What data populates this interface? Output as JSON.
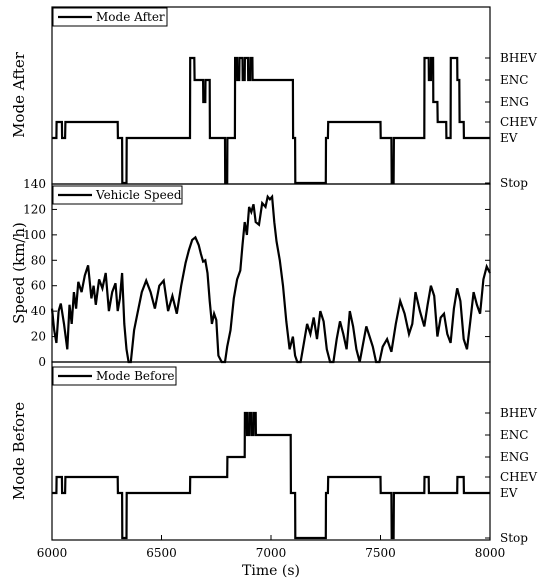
{
  "chart_data": [
    {
      "type": "line",
      "panel": "mode_after",
      "series": [
        {
          "name": "Mode After",
          "x": [
            6000,
            6020,
            6021,
            6045,
            6046,
            6060,
            6061,
            6300,
            6301,
            6320,
            6321,
            6340,
            6341,
            6630,
            6631,
            6650,
            6651,
            6690,
            6691,
            6700,
            6701,
            6720,
            6721,
            6790,
            6791,
            6800,
            6801,
            6835,
            6836,
            6845,
            6846,
            6855,
            6856,
            6870,
            6871,
            6880,
            6881,
            6895,
            6896,
            6905,
            6906,
            6915,
            6916,
            6930,
            6931,
            7100,
            7101,
            7110,
            7111,
            7250,
            7251,
            7260,
            7261,
            7500,
            7501,
            7550,
            7551,
            7560,
            7561,
            7700,
            7701,
            7720,
            7721,
            7730,
            7731,
            7740,
            7741,
            7760,
            7761,
            7800,
            7801,
            7820,
            7821,
            7850,
            7851,
            7860,
            7861,
            7880,
            7881,
            8000
          ],
          "y": [
            "EV",
            "EV",
            "CHEV",
            "CHEV",
            "EV",
            "EV",
            "CHEV",
            "CHEV",
            "EV",
            "EV",
            "Stop",
            "Stop",
            "EV",
            "EV",
            "BHEV",
            "BHEV",
            "ENC",
            "ENC",
            "ENG",
            "ENG",
            "ENC",
            "ENC",
            "EV",
            "EV",
            "Stop",
            "Stop",
            "EV",
            "EV",
            "BHEV",
            "BHEV",
            "ENC",
            "ENC",
            "BHEV",
            "BHEV",
            "ENC",
            "ENC",
            "BHEV",
            "BHEV",
            "ENC",
            "ENC",
            "BHEV",
            "BHEV",
            "ENC",
            "ENC",
            "ENC",
            "ENC",
            "EV",
            "EV",
            "Stop",
            "Stop",
            "EV",
            "EV",
            "CHEV",
            "CHEV",
            "EV",
            "EV",
            "Stop",
            "Stop",
            "EV",
            "EV",
            "BHEV",
            "BHEV",
            "ENC",
            "ENC",
            "BHEV",
            "BHEV",
            "ENG",
            "ENG",
            "CHEV",
            "CHEV",
            "EV",
            "EV",
            "BHEV",
            "BHEV",
            "ENC",
            "ENC",
            "CHEV",
            "CHEV",
            "EV",
            "EV"
          ]
        }
      ],
      "y_categories": [
        "Stop",
        "EV",
        "CHEV",
        "ENG",
        "ENC",
        "BHEV"
      ],
      "ylabel": "Mode After",
      "xlim": [
        6000,
        8000
      ]
    },
    {
      "type": "line",
      "panel": "speed",
      "series": [
        {
          "name": "Vehicle Speed",
          "x": [
            6000,
            6010,
            6020,
            6030,
            6040,
            6055,
            6070,
            6080,
            6090,
            6100,
            6110,
            6120,
            6135,
            6150,
            6165,
            6180,
            6190,
            6200,
            6215,
            6230,
            6245,
            6260,
            6275,
            6290,
            6300,
            6310,
            6320,
            6330,
            6340,
            6350,
            6360,
            6375,
            6390,
            6410,
            6430,
            6450,
            6470,
            6490,
            6510,
            6530,
            6550,
            6570,
            6590,
            6610,
            6625,
            6640,
            6655,
            6670,
            6680,
            6690,
            6700,
            6710,
            6720,
            6730,
            6740,
            6750,
            6760,
            6775,
            6790,
            6800,
            6815,
            6830,
            6845,
            6860,
            6870,
            6880,
            6890,
            6900,
            6910,
            6920,
            6930,
            6945,
            6960,
            6975,
            6985,
            6995,
            7005,
            7015,
            7025,
            7040,
            7055,
            7070,
            7085,
            7100,
            7110,
            7120,
            7135,
            7150,
            7165,
            7180,
            7195,
            7210,
            7225,
            7240,
            7255,
            7270,
            7285,
            7300,
            7315,
            7330,
            7345,
            7360,
            7375,
            7390,
            7405,
            7420,
            7435,
            7450,
            7465,
            7480,
            7495,
            7510,
            7530,
            7550,
            7570,
            7590,
            7610,
            7630,
            7645,
            7660,
            7680,
            7700,
            7715,
            7730,
            7745,
            7760,
            7775,
            7790,
            7805,
            7820,
            7835,
            7850,
            7865,
            7880,
            7895,
            7910,
            7925,
            7940,
            7955,
            7970,
            7985,
            8000
          ],
          "y": [
            42,
            25,
            15,
            40,
            46,
            30,
            10,
            45,
            30,
            55,
            42,
            63,
            55,
            68,
            76,
            50,
            60,
            45,
            65,
            58,
            70,
            40,
            55,
            62,
            40,
            50,
            70,
            30,
            10,
            0,
            0,
            25,
            38,
            55,
            64,
            55,
            42,
            60,
            64,
            40,
            52,
            38,
            60,
            78,
            88,
            96,
            98,
            92,
            85,
            79,
            80,
            70,
            48,
            30,
            38,
            33,
            5,
            0,
            0,
            12,
            25,
            50,
            65,
            72,
            92,
            110,
            100,
            122,
            118,
            124,
            110,
            108,
            125,
            122,
            130,
            128,
            130,
            110,
            95,
            80,
            60,
            32,
            10,
            20,
            5,
            0,
            0,
            15,
            30,
            22,
            35,
            18,
            40,
            32,
            10,
            0,
            0,
            18,
            32,
            22,
            10,
            40,
            28,
            10,
            0,
            14,
            28,
            20,
            12,
            0,
            0,
            12,
            18,
            8,
            30,
            48,
            38,
            22,
            30,
            55,
            40,
            28,
            45,
            60,
            52,
            20,
            35,
            38,
            22,
            15,
            42,
            58,
            48,
            18,
            10,
            32,
            55,
            45,
            38,
            65,
            75,
            70
          ]
        }
      ],
      "ylabel": "Speed (km/h)",
      "ylim": [
        0,
        140
      ],
      "yticks": [
        0,
        20,
        40,
        60,
        80,
        100,
        120,
        140
      ]
    },
    {
      "type": "line",
      "panel": "mode_before",
      "series": [
        {
          "name": "Mode Before",
          "x": [
            6000,
            6020,
            6021,
            6045,
            6046,
            6060,
            6061,
            6300,
            6301,
            6320,
            6321,
            6340,
            6341,
            6630,
            6631,
            6700,
            6701,
            6800,
            6801,
            6880,
            6881,
            6890,
            6891,
            6900,
            6901,
            6910,
            6911,
            6920,
            6921,
            6930,
            6931,
            7090,
            7091,
            7100,
            7101,
            7110,
            7111,
            7250,
            7251,
            7260,
            7261,
            7500,
            7501,
            7550,
            7551,
            7560,
            7561,
            7700,
            7701,
            7720,
            7721,
            7850,
            7851,
            7880,
            7881,
            8000
          ],
          "y": [
            "EV",
            "EV",
            "CHEV",
            "CHEV",
            "EV",
            "EV",
            "CHEV",
            "CHEV",
            "EV",
            "EV",
            "Stop",
            "Stop",
            "EV",
            "EV",
            "CHEV",
            "CHEV",
            "CHEV",
            "CHEV",
            "ENG",
            "ENG",
            "BHEV",
            "BHEV",
            "ENC",
            "ENC",
            "BHEV",
            "BHEV",
            "ENC",
            "ENC",
            "BHEV",
            "BHEV",
            "ENC",
            "ENC",
            "EV",
            "EV",
            "EV",
            "EV",
            "Stop",
            "Stop",
            "EV",
            "EV",
            "CHEV",
            "CHEV",
            "EV",
            "EV",
            "Stop",
            "Stop",
            "EV",
            "EV",
            "CHEV",
            "CHEV",
            "EV",
            "EV",
            "CHEV",
            "CHEV",
            "EV",
            "EV"
          ]
        }
      ],
      "y_categories": [
        "Stop",
        "EV",
        "CHEV",
        "ENG",
        "ENC",
        "BHEV"
      ],
      "ylabel": "Mode Before",
      "xlabel": "Time (s)",
      "xlim": [
        6000,
        8000
      ],
      "xticks": [
        6000,
        6500,
        7000,
        7500,
        8000
      ]
    }
  ]
}
